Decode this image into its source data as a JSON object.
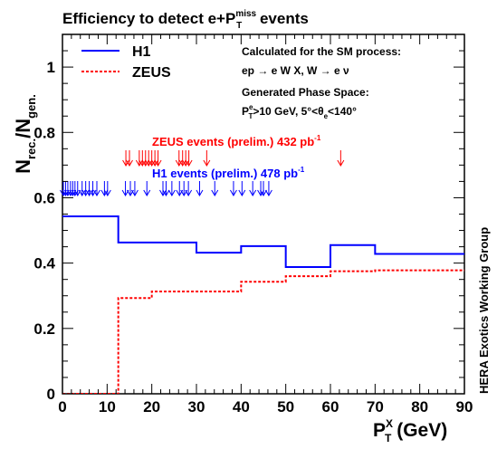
{
  "chart_data": {
    "type": "line",
    "title_parts": {
      "main": "Efficiency to detect e+P",
      "sup": "miss",
      "sub": "T",
      "tail": " events"
    },
    "ylabel_parts": {
      "n1": "N",
      "s1": "rec.",
      "mid": "/N",
      "s2": "gen."
    },
    "xlabel_parts": {
      "p": "P",
      "sup": "X",
      "sub": "T",
      "tail": " (GeV)"
    },
    "side_label": "HERA  Exotics Working Group",
    "xlim": [
      0,
      90
    ],
    "ylim": [
      0,
      1.1
    ],
    "x_ticks": [
      "0",
      "10",
      "20",
      "30",
      "40",
      "50",
      "60",
      "70",
      "80",
      "90"
    ],
    "y_ticks": [
      "0",
      "0.2",
      "0.4",
      "0.6",
      "0.8",
      "1"
    ],
    "legend": [
      {
        "name": "H1",
        "color": "#0000ff",
        "dash": false
      },
      {
        "name": "ZEUS",
        "color": "#ff0000",
        "dash": true
      }
    ],
    "notes": {
      "calc": "Calculated for the SM process:",
      "process": "ep → e W X, W → e ν",
      "gen": "Generated Phase Space:",
      "cuts": "P",
      "cuts_sup": "e",
      "cuts_sub": "T",
      "cuts_tail": ">10 GeV, 5°<θ",
      "cuts_sub2": "e",
      "cuts_tail2": "<140°"
    },
    "event_labels": {
      "zeus_text": "ZEUS events (prelim.) 432 pb",
      "zeus_sup": "-1",
      "h1_text": "H1 events (prelim.) 478 pb",
      "h1_sup": "-1"
    },
    "series": [
      {
        "name": "H1",
        "color": "#0000ff",
        "edges": [
          0,
          12.5,
          30,
          40,
          50,
          60,
          70,
          90
        ],
        "values": [
          0.543,
          0.463,
          0.432,
          0.452,
          0.388,
          0.455,
          0.428
        ]
      },
      {
        "name": "ZEUS",
        "color": "#ff0000",
        "edges": [
          0,
          12.5,
          20,
          30,
          40,
          50,
          60,
          70,
          90
        ],
        "values": [
          0.0,
          0.293,
          0.313,
          0.313,
          0.343,
          0.36,
          0.375,
          0.378
        ]
      }
    ],
    "zeus_events_x": [
      14.2,
      15.0,
      17.2,
      17.9,
      18.6,
      19.3,
      20.0,
      20.7,
      21.4,
      26.1,
      26.9,
      27.6,
      28.3,
      32.3,
      62.3
    ],
    "h1_events_x": [
      0.2,
      0.7,
      1.2,
      1.8,
      2.3,
      2.8,
      3.4,
      4.4,
      5.2,
      6.0,
      6.8,
      7.7,
      9.4,
      10.1,
      14.1,
      15.2,
      16.2,
      18.9,
      22.5,
      23.2,
      24.5,
      26.2,
      27.2,
      28.2,
      30.7,
      34.1,
      38.3,
      40.2,
      42.6,
      44.4,
      45.0,
      46.2
    ]
  }
}
